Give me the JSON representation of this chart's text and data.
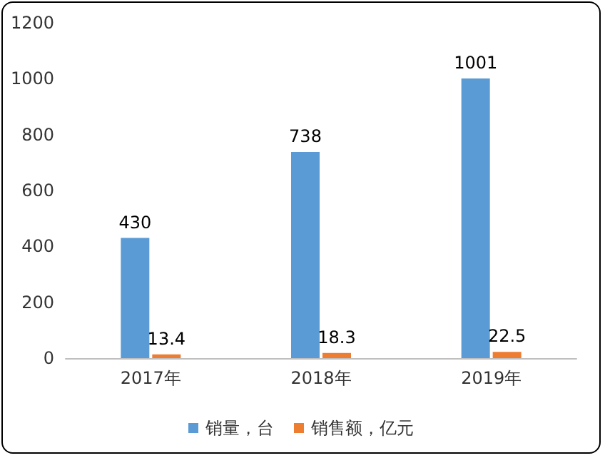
{
  "chart_data": {
    "type": "bar",
    "categories": [
      "2017年",
      "2018年",
      "2019年"
    ],
    "series": [
      {
        "name": "销量，台",
        "color": "#5b9bd5",
        "values": [
          430,
          738,
          1001
        ]
      },
      {
        "name": "销售额，亿元",
        "color": "#ed7d31",
        "values": [
          13.4,
          18.3,
          22.5
        ]
      }
    ],
    "ylim": [
      0,
      1200
    ],
    "yticks": [
      0,
      200,
      400,
      600,
      800,
      1000,
      1200
    ],
    "grid": false,
    "legend": "bottom",
    "data_labels": true
  }
}
